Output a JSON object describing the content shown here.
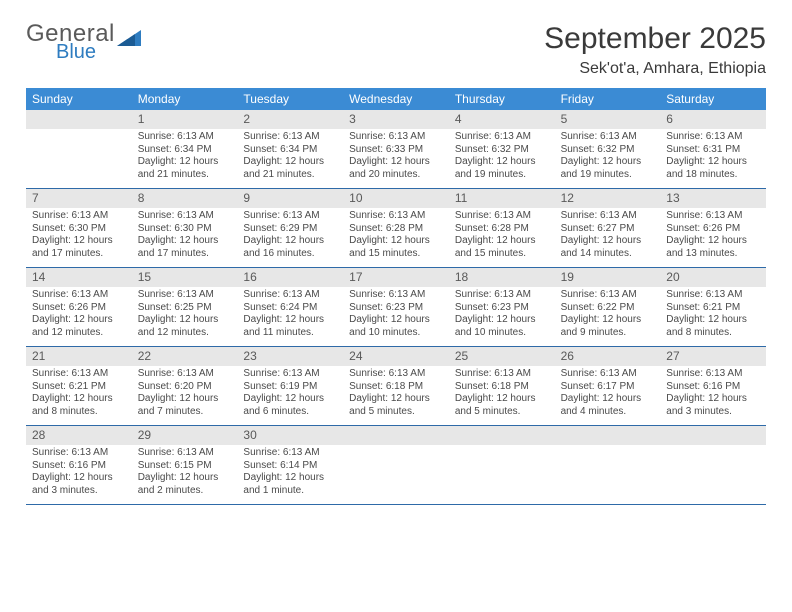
{
  "logo": {
    "general": "General",
    "blue": "Blue",
    "tri_color": "#2e7cc0"
  },
  "title": "September 2025",
  "location": "Sek'ot'a, Amhara, Ethiopia",
  "colors": {
    "header_bg": "#3b8bd4",
    "header_text": "#ffffff",
    "daynum_bg": "#e7e7e7",
    "daynum_text": "#595959",
    "border": "#2e6aa8",
    "body_text": "#4a4a4a",
    "page_bg": "#ffffff"
  },
  "fonts": {
    "title_pt": 30,
    "location_pt": 16,
    "header_pt": 12,
    "daynum_pt": 12,
    "body_pt": 10
  },
  "day_names": [
    "Sunday",
    "Monday",
    "Tuesday",
    "Wednesday",
    "Thursday",
    "Friday",
    "Saturday"
  ],
  "weeks": [
    [
      {
        "num": "",
        "sunrise": "",
        "sunset": "",
        "daylight": ""
      },
      {
        "num": "1",
        "sunrise": "Sunrise: 6:13 AM",
        "sunset": "Sunset: 6:34 PM",
        "daylight": "Daylight: 12 hours and 21 minutes."
      },
      {
        "num": "2",
        "sunrise": "Sunrise: 6:13 AM",
        "sunset": "Sunset: 6:34 PM",
        "daylight": "Daylight: 12 hours and 21 minutes."
      },
      {
        "num": "3",
        "sunrise": "Sunrise: 6:13 AM",
        "sunset": "Sunset: 6:33 PM",
        "daylight": "Daylight: 12 hours and 20 minutes."
      },
      {
        "num": "4",
        "sunrise": "Sunrise: 6:13 AM",
        "sunset": "Sunset: 6:32 PM",
        "daylight": "Daylight: 12 hours and 19 minutes."
      },
      {
        "num": "5",
        "sunrise": "Sunrise: 6:13 AM",
        "sunset": "Sunset: 6:32 PM",
        "daylight": "Daylight: 12 hours and 19 minutes."
      },
      {
        "num": "6",
        "sunrise": "Sunrise: 6:13 AM",
        "sunset": "Sunset: 6:31 PM",
        "daylight": "Daylight: 12 hours and 18 minutes."
      }
    ],
    [
      {
        "num": "7",
        "sunrise": "Sunrise: 6:13 AM",
        "sunset": "Sunset: 6:30 PM",
        "daylight": "Daylight: 12 hours and 17 minutes."
      },
      {
        "num": "8",
        "sunrise": "Sunrise: 6:13 AM",
        "sunset": "Sunset: 6:30 PM",
        "daylight": "Daylight: 12 hours and 17 minutes."
      },
      {
        "num": "9",
        "sunrise": "Sunrise: 6:13 AM",
        "sunset": "Sunset: 6:29 PM",
        "daylight": "Daylight: 12 hours and 16 minutes."
      },
      {
        "num": "10",
        "sunrise": "Sunrise: 6:13 AM",
        "sunset": "Sunset: 6:28 PM",
        "daylight": "Daylight: 12 hours and 15 minutes."
      },
      {
        "num": "11",
        "sunrise": "Sunrise: 6:13 AM",
        "sunset": "Sunset: 6:28 PM",
        "daylight": "Daylight: 12 hours and 15 minutes."
      },
      {
        "num": "12",
        "sunrise": "Sunrise: 6:13 AM",
        "sunset": "Sunset: 6:27 PM",
        "daylight": "Daylight: 12 hours and 14 minutes."
      },
      {
        "num": "13",
        "sunrise": "Sunrise: 6:13 AM",
        "sunset": "Sunset: 6:26 PM",
        "daylight": "Daylight: 12 hours and 13 minutes."
      }
    ],
    [
      {
        "num": "14",
        "sunrise": "Sunrise: 6:13 AM",
        "sunset": "Sunset: 6:26 PM",
        "daylight": "Daylight: 12 hours and 12 minutes."
      },
      {
        "num": "15",
        "sunrise": "Sunrise: 6:13 AM",
        "sunset": "Sunset: 6:25 PM",
        "daylight": "Daylight: 12 hours and 12 minutes."
      },
      {
        "num": "16",
        "sunrise": "Sunrise: 6:13 AM",
        "sunset": "Sunset: 6:24 PM",
        "daylight": "Daylight: 12 hours and 11 minutes."
      },
      {
        "num": "17",
        "sunrise": "Sunrise: 6:13 AM",
        "sunset": "Sunset: 6:23 PM",
        "daylight": "Daylight: 12 hours and 10 minutes."
      },
      {
        "num": "18",
        "sunrise": "Sunrise: 6:13 AM",
        "sunset": "Sunset: 6:23 PM",
        "daylight": "Daylight: 12 hours and 10 minutes."
      },
      {
        "num": "19",
        "sunrise": "Sunrise: 6:13 AM",
        "sunset": "Sunset: 6:22 PM",
        "daylight": "Daylight: 12 hours and 9 minutes."
      },
      {
        "num": "20",
        "sunrise": "Sunrise: 6:13 AM",
        "sunset": "Sunset: 6:21 PM",
        "daylight": "Daylight: 12 hours and 8 minutes."
      }
    ],
    [
      {
        "num": "21",
        "sunrise": "Sunrise: 6:13 AM",
        "sunset": "Sunset: 6:21 PM",
        "daylight": "Daylight: 12 hours and 8 minutes."
      },
      {
        "num": "22",
        "sunrise": "Sunrise: 6:13 AM",
        "sunset": "Sunset: 6:20 PM",
        "daylight": "Daylight: 12 hours and 7 minutes."
      },
      {
        "num": "23",
        "sunrise": "Sunrise: 6:13 AM",
        "sunset": "Sunset: 6:19 PM",
        "daylight": "Daylight: 12 hours and 6 minutes."
      },
      {
        "num": "24",
        "sunrise": "Sunrise: 6:13 AM",
        "sunset": "Sunset: 6:18 PM",
        "daylight": "Daylight: 12 hours and 5 minutes."
      },
      {
        "num": "25",
        "sunrise": "Sunrise: 6:13 AM",
        "sunset": "Sunset: 6:18 PM",
        "daylight": "Daylight: 12 hours and 5 minutes."
      },
      {
        "num": "26",
        "sunrise": "Sunrise: 6:13 AM",
        "sunset": "Sunset: 6:17 PM",
        "daylight": "Daylight: 12 hours and 4 minutes."
      },
      {
        "num": "27",
        "sunrise": "Sunrise: 6:13 AM",
        "sunset": "Sunset: 6:16 PM",
        "daylight": "Daylight: 12 hours and 3 minutes."
      }
    ],
    [
      {
        "num": "28",
        "sunrise": "Sunrise: 6:13 AM",
        "sunset": "Sunset: 6:16 PM",
        "daylight": "Daylight: 12 hours and 3 minutes."
      },
      {
        "num": "29",
        "sunrise": "Sunrise: 6:13 AM",
        "sunset": "Sunset: 6:15 PM",
        "daylight": "Daylight: 12 hours and 2 minutes."
      },
      {
        "num": "30",
        "sunrise": "Sunrise: 6:13 AM",
        "sunset": "Sunset: 6:14 PM",
        "daylight": "Daylight: 12 hours and 1 minute."
      },
      {
        "num": "",
        "sunrise": "",
        "sunset": "",
        "daylight": ""
      },
      {
        "num": "",
        "sunrise": "",
        "sunset": "",
        "daylight": ""
      },
      {
        "num": "",
        "sunrise": "",
        "sunset": "",
        "daylight": ""
      },
      {
        "num": "",
        "sunrise": "",
        "sunset": "",
        "daylight": ""
      }
    ]
  ]
}
